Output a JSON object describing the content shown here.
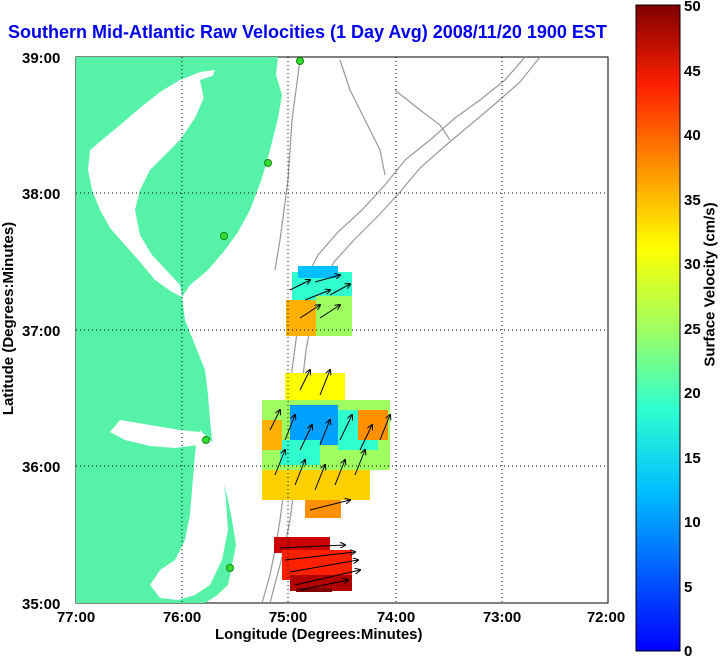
{
  "title": "Southern Mid-Atlantic Raw Velocities (1 Day Avg) 2008/11/20 1900 EST",
  "x_axis": {
    "label": "Longitude (Degrees:Minutes)",
    "ticks": [
      "77:00",
      "76:00",
      "75:00",
      "74:00",
      "73:00",
      "72:00"
    ]
  },
  "y_axis": {
    "label": "Latitude (Degrees:Minutes)",
    "ticks": [
      "39:00",
      "38:00",
      "37:00",
      "36:00",
      "35:00"
    ]
  },
  "colorbar": {
    "label": "Surface Velocity (cm/s)",
    "ticks": [
      "50",
      "45",
      "40",
      "35",
      "30",
      "25",
      "20",
      "15",
      "10",
      "5",
      "0"
    ],
    "range": [
      0,
      50
    ],
    "colormap": "jet"
  },
  "colors": {
    "land": "#55f2a8",
    "title": "#0000ee",
    "bathymetry": "#999999",
    "station": "#33dd33"
  },
  "chart_data": {
    "type": "heatmap",
    "title": "Southern Mid-Atlantic Raw Velocities (1 Day Avg) 2008/11/20 1900 EST",
    "xlabel": "Longitude (Degrees:Minutes)",
    "ylabel": "Latitude (Degrees:Minutes)",
    "xlim": [
      "77:00",
      "72:00"
    ],
    "ylim": [
      "35:00",
      "39:00"
    ],
    "grid": true,
    "colorbar_label": "Surface Velocity (cm/s)",
    "colorbar_range": [
      0,
      50
    ]
  }
}
